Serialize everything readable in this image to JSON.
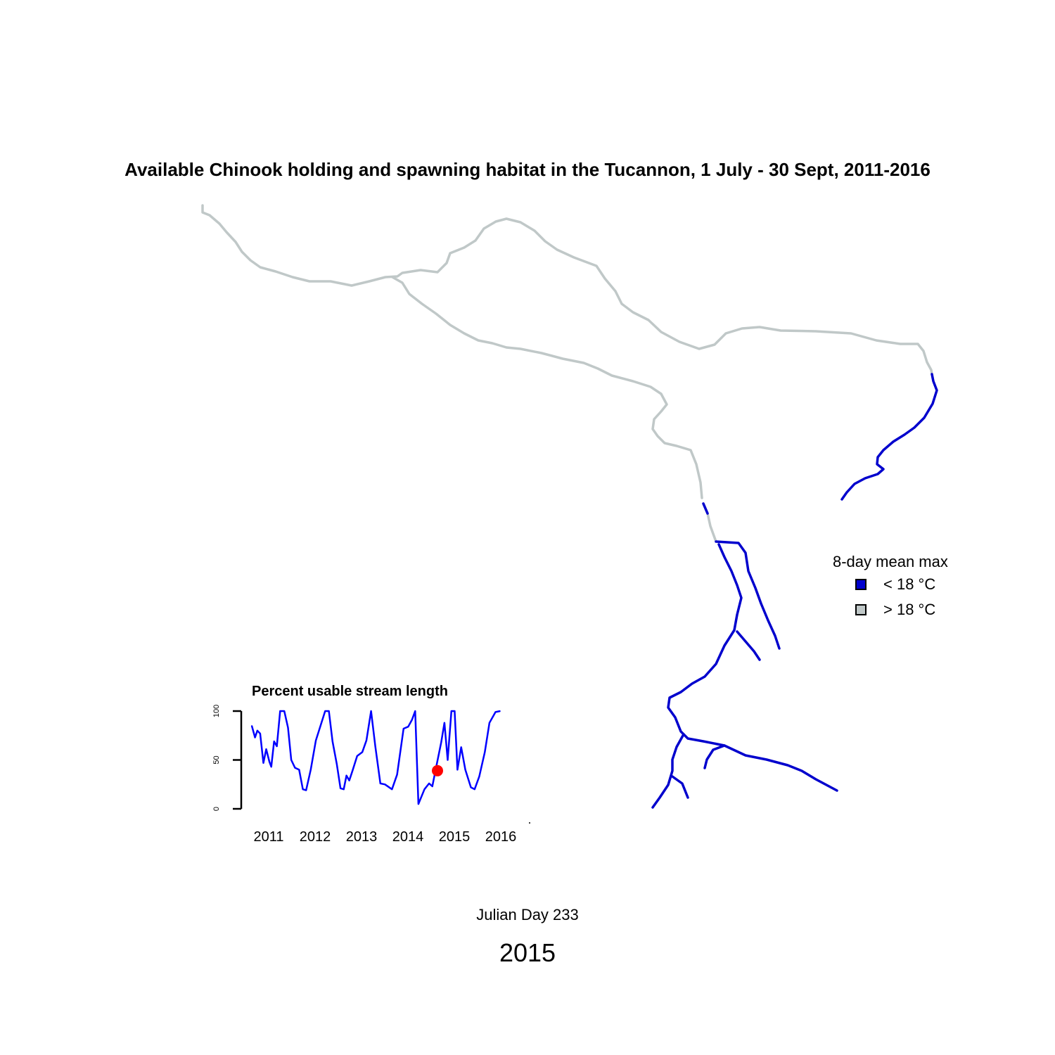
{
  "title": "Available Chinook holding and spawning habitat in the Tucannon, 1 July - 30 Sept, 2011-2016",
  "colors": {
    "usable": "#0000CD",
    "unusable": "#C0C8C8",
    "marker": "#FF0000"
  },
  "legend": {
    "title": "8-day mean max",
    "items": [
      {
        "label": "< 18 °C",
        "color": "#0000CD"
      },
      {
        "label": "> 18 °C",
        "color": "#C0C8C8"
      }
    ]
  },
  "chart_data": {
    "type": "line",
    "title": "Percent usable stream length",
    "ylim": [
      0,
      100
    ],
    "yticks": [
      0,
      50,
      100
    ],
    "xticks": [
      "2011",
      "2012",
      "2013",
      "2014",
      "2015",
      "2016"
    ],
    "series": [
      {
        "values": [
          {
            "x": 2011.0,
            "y": 85
          },
          {
            "x": 2011.07,
            "y": 73
          },
          {
            "x": 2011.12,
            "y": 80
          },
          {
            "x": 2011.18,
            "y": 77
          },
          {
            "x": 2011.25,
            "y": 47
          },
          {
            "x": 2011.31,
            "y": 61
          },
          {
            "x": 2011.38,
            "y": 48
          },
          {
            "x": 2011.42,
            "y": 43
          },
          {
            "x": 2011.48,
            "y": 69
          },
          {
            "x": 2011.54,
            "y": 64
          },
          {
            "x": 2011.61,
            "y": 100
          },
          {
            "x": 2011.7,
            "y": 100
          },
          {
            "x": 2011.78,
            "y": 83
          },
          {
            "x": 2011.85,
            "y": 50
          },
          {
            "x": 2011.93,
            "y": 42
          },
          {
            "x": 2012.02,
            "y": 40
          },
          {
            "x": 2012.1,
            "y": 20
          },
          {
            "x": 2012.17,
            "y": 19
          },
          {
            "x": 2012.27,
            "y": 40
          },
          {
            "x": 2012.38,
            "y": 70
          },
          {
            "x": 2012.48,
            "y": 85
          },
          {
            "x": 2012.58,
            "y": 100
          },
          {
            "x": 2012.66,
            "y": 100
          },
          {
            "x": 2012.74,
            "y": 69
          },
          {
            "x": 2012.83,
            "y": 46
          },
          {
            "x": 2012.91,
            "y": 21
          },
          {
            "x": 2012.98,
            "y": 20
          },
          {
            "x": 2013.04,
            "y": 34
          },
          {
            "x": 2013.1,
            "y": 29
          },
          {
            "x": 2013.17,
            "y": 39
          },
          {
            "x": 2013.27,
            "y": 54
          },
          {
            "x": 2013.38,
            "y": 58
          },
          {
            "x": 2013.47,
            "y": 70
          },
          {
            "x": 2013.57,
            "y": 100
          },
          {
            "x": 2013.66,
            "y": 64
          },
          {
            "x": 2013.77,
            "y": 26
          },
          {
            "x": 2013.87,
            "y": 25
          },
          {
            "x": 2014.02,
            "y": 20
          },
          {
            "x": 2014.13,
            "y": 35
          },
          {
            "x": 2014.27,
            "y": 82
          },
          {
            "x": 2014.37,
            "y": 84
          },
          {
            "x": 2014.45,
            "y": 91
          },
          {
            "x": 2014.52,
            "y": 100
          },
          {
            "x": 2014.59,
            "y": 5
          },
          {
            "x": 2014.72,
            "y": 20
          },
          {
            "x": 2014.82,
            "y": 26
          },
          {
            "x": 2014.89,
            "y": 23
          },
          {
            "x": 2014.96,
            "y": 40
          },
          {
            "x": 2015.08,
            "y": 68
          },
          {
            "x": 2015.15,
            "y": 88
          },
          {
            "x": 2015.22,
            "y": 50
          },
          {
            "x": 2015.3,
            "y": 100
          },
          {
            "x": 2015.37,
            "y": 100
          },
          {
            "x": 2015.43,
            "y": 40
          },
          {
            "x": 2015.51,
            "y": 63
          },
          {
            "x": 2015.6,
            "y": 40
          },
          {
            "x": 2015.72,
            "y": 22
          },
          {
            "x": 2015.8,
            "y": 20
          },
          {
            "x": 2015.9,
            "y": 33
          },
          {
            "x": 2016.02,
            "y": 58
          },
          {
            "x": 2016.12,
            "y": 88
          },
          {
            "x": 2016.25,
            "y": 99
          },
          {
            "x": 2016.35,
            "y": 100
          }
        ]
      }
    ],
    "marker": {
      "x": 2015.0,
      "y": 39
    }
  },
  "julian_day_label": "Julian Day 233",
  "year_label": "2015"
}
